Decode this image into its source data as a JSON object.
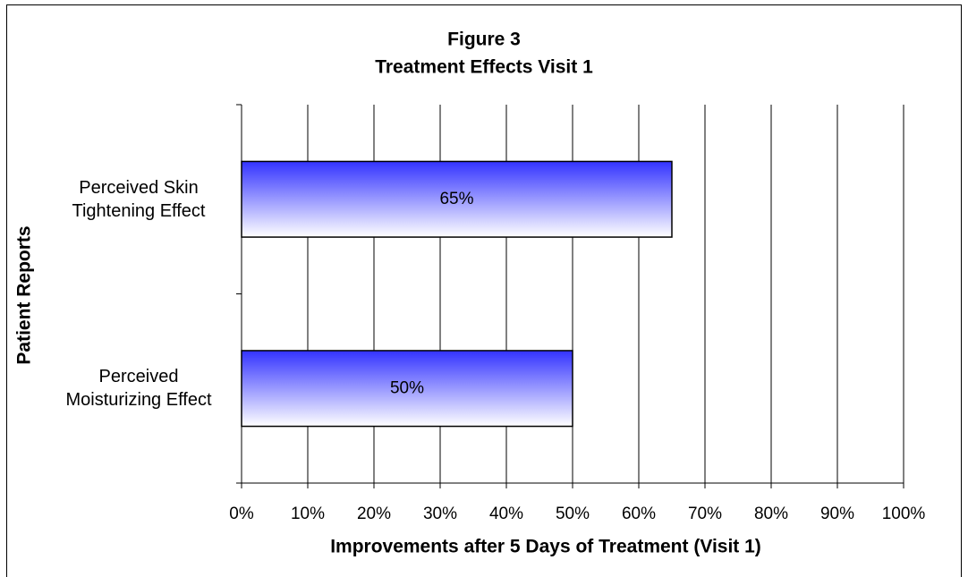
{
  "chart_data": {
    "type": "bar",
    "orientation": "horizontal",
    "title": "Figure 3",
    "subtitle": "Treatment Effects Visit 1",
    "x_label": "Improvements after 5 Days of Treatment (Visit 1)",
    "y_label": "Patient Reports",
    "categories": [
      "Perceived Skin Tightening Effect",
      "Perceived Moisturizing Effect"
    ],
    "values": [
      65,
      50
    ],
    "value_labels": [
      "65%",
      "50%"
    ],
    "color": "#3333ff",
    "xlim": [
      0,
      100
    ],
    "xticks": [
      {
        "value": 0,
        "label": "0%"
      },
      {
        "value": 10,
        "label": "10%"
      },
      {
        "value": 20,
        "label": "20%"
      },
      {
        "value": 30,
        "label": "30%"
      },
      {
        "value": 40,
        "label": "40%"
      },
      {
        "value": 50,
        "label": "50%"
      },
      {
        "value": 60,
        "label": "60%"
      },
      {
        "value": 70,
        "label": "70%"
      },
      {
        "value": 80,
        "label": "80%"
      },
      {
        "value": 90,
        "label": "90%"
      },
      {
        "value": 100,
        "label": "100%"
      }
    ],
    "grid": true
  }
}
